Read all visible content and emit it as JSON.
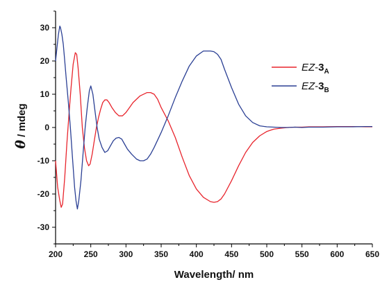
{
  "chart_data": {
    "type": "line",
    "xlabel": "Wavelength/ nm",
    "ylabel_symbol": "θ",
    "ylabel_unit": " / mdeg",
    "xlim": [
      200,
      650
    ],
    "ylim": [
      -35,
      35
    ],
    "xticks": [
      200,
      250,
      300,
      350,
      400,
      450,
      500,
      550,
      600,
      650
    ],
    "yticks": [
      -30,
      -20,
      -10,
      0,
      10,
      20,
      30
    ],
    "grid": false,
    "legend_position": "top-right",
    "series": [
      {
        "name": "EZ-3A",
        "name_italic": "EZ",
        "name_sep": "-",
        "name_bold": "3",
        "name_sub": "A",
        "color": "#e8242c",
        "x": [
          200,
          203,
          206,
          208,
          210,
          213,
          216,
          219,
          222,
          225,
          228,
          230,
          232,
          235,
          238,
          241,
          244,
          247,
          249,
          252,
          255,
          258,
          261,
          264,
          267,
          270,
          273,
          276,
          280,
          285,
          290,
          295,
          300,
          305,
          310,
          320,
          330,
          335,
          340,
          345,
          350,
          360,
          370,
          380,
          390,
          400,
          410,
          420,
          425,
          430,
          435,
          440,
          450,
          460,
          470,
          480,
          490,
          500,
          510,
          520,
          530,
          540,
          550,
          560,
          580,
          600,
          620,
          640,
          650
        ],
        "y": [
          -10,
          -18,
          -22,
          -24,
          -23,
          -15,
          -5,
          4,
          12,
          19,
          22.5,
          22,
          18,
          10,
          0,
          -6,
          -10,
          -11.5,
          -11,
          -8,
          -4,
          0,
          3,
          5.5,
          7.5,
          8.3,
          8.3,
          7.5,
          6,
          4.5,
          3.5,
          3.5,
          4.5,
          6,
          7.5,
          9.5,
          10.5,
          10.5,
          10,
          8.5,
          6,
          2,
          -3,
          -9,
          -14.5,
          -18.5,
          -21,
          -22.3,
          -22.5,
          -22.3,
          -21.5,
          -20,
          -16,
          -11.5,
          -7.5,
          -4.5,
          -2.5,
          -1.2,
          -0.5,
          -0.2,
          0,
          0.1,
          0.1,
          0.2,
          0.2,
          0.3,
          0.3,
          0.2,
          0.2
        ]
      },
      {
        "name": "EZ-3B",
        "name_italic": "EZ",
        "name_sep": "-",
        "name_bold": "3",
        "name_sub": "B",
        "color": "#2a3f94",
        "x": [
          200,
          202,
          204,
          206,
          207,
          209,
          211,
          213,
          215,
          218,
          221,
          224,
          227,
          229,
          231,
          233,
          236,
          239,
          242,
          245,
          248,
          250,
          253,
          256,
          259,
          262,
          266,
          270,
          274,
          278,
          282,
          286,
          290,
          294,
          298,
          302,
          308,
          315,
          320,
          325,
          330,
          335,
          340,
          350,
          360,
          370,
          380,
          390,
          400,
          410,
          420,
          425,
          430,
          435,
          440,
          450,
          460,
          470,
          480,
          490,
          500,
          510,
          520,
          530,
          540,
          550,
          560,
          580,
          600,
          620,
          640,
          650
        ],
        "y": [
          20,
          24,
          28,
          30.5,
          30,
          28,
          25,
          20,
          15,
          8,
          0,
          -9,
          -18,
          -22,
          -24.5,
          -22,
          -16,
          -8,
          0,
          6,
          11,
          12.5,
          10,
          5,
          0,
          -3.5,
          -6,
          -7.5,
          -7,
          -5.5,
          -4,
          -3.2,
          -3,
          -3.5,
          -5,
          -6.5,
          -8,
          -9.5,
          -10,
          -10,
          -9.5,
          -8,
          -6,
          -1.5,
          3.5,
          9,
          14,
          18.5,
          21.5,
          23,
          23,
          22.8,
          22,
          20.5,
          17.5,
          12,
          7,
          3.5,
          1.5,
          0.5,
          0.2,
          0.1,
          0,
          0,
          0.1,
          0,
          0.1,
          0.1,
          0.2,
          0.2,
          0.3,
          0.3
        ]
      }
    ]
  }
}
